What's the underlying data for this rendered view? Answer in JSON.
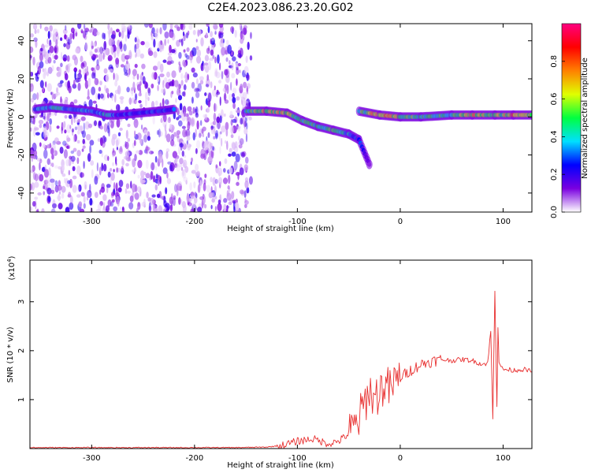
{
  "figure_title": "C2E4.2023.086.23.20.G02",
  "chart_data": [
    {
      "type": "heatmap",
      "title": "",
      "xlabel": "Height of straight line (km)",
      "ylabel": "Frequency (Hz)",
      "xlim": [
        -360,
        128
      ],
      "ylim": [
        -50,
        49
      ],
      "x_ticks": [
        -300,
        -200,
        -100,
        0,
        100
      ],
      "y_ticks": [
        -40,
        -20,
        0,
        20,
        40
      ],
      "x_tick_labels": [
        "-300",
        "-200",
        "-100",
        "0",
        "100"
      ],
      "y_tick_labels": [
        "-40",
        "-20",
        "0",
        "20",
        "40"
      ],
      "colorbar": {
        "label": "Normalized spectral amplitude",
        "range": [
          0,
          1
        ],
        "ticks": [
          0.0,
          0.2,
          0.4,
          0.6,
          0.8
        ],
        "tick_labels": [
          "0.0",
          "0.2",
          "0.4",
          "0.6",
          "0.8"
        ],
        "colors": [
          "#ffffff",
          "#7a00e0",
          "#0000ff",
          "#00e0ff",
          "#00ff40",
          "#e0ff00",
          "#ff8000",
          "#ff0000",
          "#ff0080"
        ]
      },
      "noise_region_x": [
        -360,
        -145
      ],
      "trace": [
        {
          "x": -355,
          "y": 4,
          "amp": 0.35
        },
        {
          "x": -340,
          "y": 5,
          "amp": 0.45
        },
        {
          "x": -320,
          "y": 4,
          "amp": 0.4
        },
        {
          "x": -300,
          "y": 3,
          "amp": 0.35
        },
        {
          "x": -285,
          "y": 1,
          "amp": 0.45
        },
        {
          "x": -275,
          "y": 1,
          "amp": 0.3
        },
        {
          "x": -235,
          "y": 3,
          "amp": 0.3
        },
        {
          "x": -220,
          "y": 4,
          "amp": 0.3
        },
        {
          "x": -150,
          "y": 3,
          "amp": 0.5
        },
        {
          "x": -130,
          "y": 3,
          "amp": 0.7
        },
        {
          "x": -110,
          "y": 2,
          "amp": 0.6
        },
        {
          "x": -95,
          "y": -2,
          "amp": 0.55
        },
        {
          "x": -80,
          "y": -5,
          "amp": 0.55
        },
        {
          "x": -65,
          "y": -7,
          "amp": 0.5
        },
        {
          "x": -50,
          "y": -9,
          "amp": 0.4
        },
        {
          "x": -40,
          "y": -12,
          "amp": 0.3
        },
        {
          "x": -30,
          "y": -25,
          "amp": 0.15
        },
        {
          "x": -55,
          "y": 5,
          "amp": 0.4
        },
        {
          "x": -40,
          "y": 3,
          "amp": 0.5
        },
        {
          "x": -20,
          "y": 1,
          "amp": 0.75
        },
        {
          "x": 0,
          "y": 0,
          "amp": 0.6
        },
        {
          "x": 20,
          "y": 0,
          "amp": 0.5
        },
        {
          "x": 50,
          "y": 1,
          "amp": 0.5
        },
        {
          "x": 70,
          "y": 1,
          "amp": 0.7
        },
        {
          "x": 92,
          "y": 1,
          "amp": 0.55
        },
        {
          "x": 110,
          "y": 1,
          "amp": 0.75
        },
        {
          "x": 128,
          "y": 1,
          "amp": 0.7
        }
      ]
    },
    {
      "type": "line",
      "title": "",
      "xlabel": "Height of straight line (km)",
      "ylabel": "SNR (10 * v/v)",
      "y_multiplier_label": "(x10",
      "y_multiplier_exponent": "4",
      "y_multiplier_close": ")",
      "xlim": [
        -360,
        128
      ],
      "ylim": [
        0,
        3.85
      ],
      "x_ticks": [
        -300,
        -200,
        -100,
        0,
        100
      ],
      "y_ticks": [
        1,
        2,
        3
      ],
      "x_tick_labels": [
        "-300",
        "-200",
        "-100",
        "0",
        "100"
      ],
      "y_tick_labels": [
        "1",
        "2",
        "3"
      ],
      "series": [
        {
          "color": "#e83030",
          "x": [
            -360,
            -300,
            -250,
            -200,
            -160,
            -130,
            -115,
            -100,
            -85,
            -70,
            -60,
            -50,
            -42,
            -35,
            -30,
            -25,
            -20,
            -15,
            -10,
            -5,
            0,
            10,
            20,
            30,
            40,
            50,
            60,
            70,
            80,
            85,
            88,
            90,
            92,
            94,
            95,
            96,
            98,
            100,
            110,
            120,
            128
          ],
          "y": [
            0.02,
            0.02,
            0.02,
            0.02,
            0.02,
            0.03,
            0.06,
            0.15,
            0.2,
            0.1,
            0.15,
            0.3,
            0.5,
            0.9,
            1.2,
            1.0,
            1.2,
            1.3,
            1.2,
            1.35,
            1.45,
            1.6,
            1.72,
            1.78,
            1.82,
            1.8,
            1.82,
            1.8,
            1.72,
            1.75,
            2.4,
            0.6,
            3.2,
            0.9,
            2.5,
            1.8,
            1.65,
            1.62,
            1.6,
            1.62,
            1.57
          ]
        }
      ]
    }
  ]
}
